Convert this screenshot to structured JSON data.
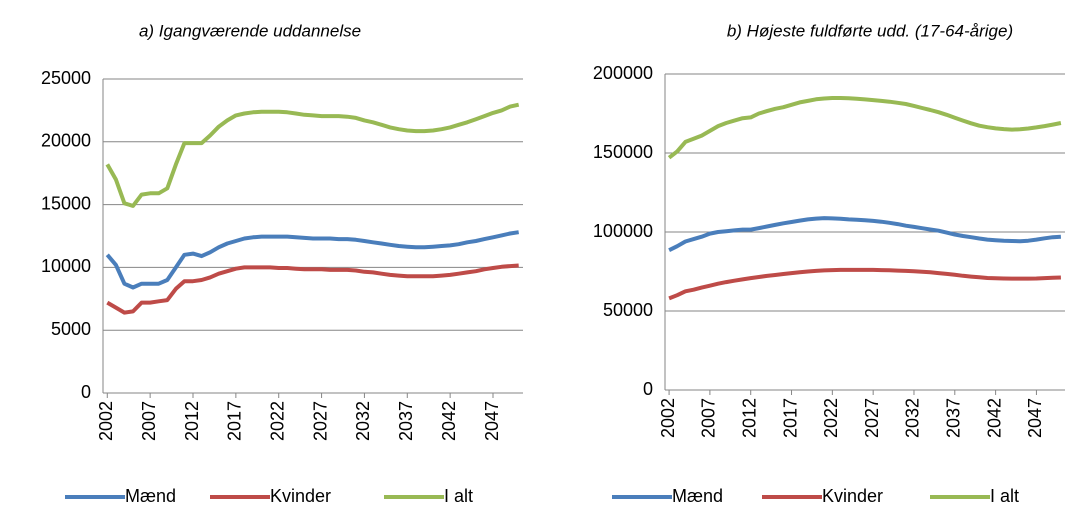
{
  "chart_data": [
    {
      "type": "line",
      "title": "a) Igangværende uddannelse",
      "x": [
        2002,
        2003,
        2004,
        2005,
        2006,
        2007,
        2008,
        2009,
        2010,
        2011,
        2012,
        2013,
        2014,
        2015,
        2016,
        2017,
        2018,
        2019,
        2020,
        2021,
        2022,
        2023,
        2024,
        2025,
        2026,
        2027,
        2028,
        2029,
        2030,
        2031,
        2032,
        2033,
        2034,
        2035,
        2036,
        2037,
        2038,
        2039,
        2040,
        2041,
        2042,
        2043,
        2044,
        2045,
        2046,
        2047,
        2048,
        2049,
        2050
      ],
      "xlim": [
        2002,
        2050
      ],
      "xticks": [
        2002,
        2007,
        2012,
        2017,
        2022,
        2027,
        2032,
        2037,
        2042,
        2047
      ],
      "ylim": [
        0,
        25000
      ],
      "yticks": [
        0,
        5000,
        10000,
        15000,
        20000,
        25000
      ],
      "grid": true,
      "series": [
        {
          "name": "Mænd",
          "color": "#4a7ebb",
          "values": [
            11000,
            10200,
            8700,
            8400,
            8700,
            8700,
            8700,
            9000,
            10000,
            11000,
            11100,
            10900,
            11200,
            11600,
            11900,
            12100,
            12300,
            12400,
            12450,
            12450,
            12450,
            12450,
            12400,
            12350,
            12300,
            12300,
            12300,
            12250,
            12250,
            12200,
            12100,
            12000,
            11900,
            11800,
            11700,
            11650,
            11600,
            11600,
            11650,
            11700,
            11750,
            11850,
            12000,
            12100,
            12250,
            12400,
            12550,
            12700,
            12800
          ]
        },
        {
          "name": "Kvinder",
          "color": "#be4b48",
          "values": [
            7200,
            6800,
            6400,
            6500,
            7200,
            7200,
            7300,
            7400,
            8300,
            8900,
            8900,
            9000,
            9200,
            9500,
            9700,
            9900,
            10000,
            10000,
            10000,
            10000,
            9950,
            9950,
            9900,
            9850,
            9850,
            9850,
            9800,
            9800,
            9800,
            9750,
            9650,
            9600,
            9500,
            9400,
            9350,
            9300,
            9300,
            9300,
            9300,
            9350,
            9400,
            9500,
            9600,
            9700,
            9850,
            9950,
            10050,
            10100,
            10150
          ]
        },
        {
          "name": "I alt",
          "color": "#98b954",
          "values": [
            18200,
            17000,
            15100,
            14900,
            15800,
            15900,
            15900,
            16300,
            18200,
            19900,
            19900,
            19900,
            20500,
            21200,
            21700,
            22100,
            22250,
            22350,
            22400,
            22400,
            22400,
            22350,
            22250,
            22150,
            22100,
            22050,
            22050,
            22050,
            22000,
            21900,
            21700,
            21550,
            21350,
            21150,
            21000,
            20900,
            20850,
            20850,
            20900,
            21000,
            21150,
            21350,
            21550,
            21800,
            22050,
            22300,
            22500,
            22800,
            22950
          ]
        }
      ]
    },
    {
      "type": "line",
      "title": "b) Højeste fuldførte udd. (17-64-årige)",
      "x": [
        2002,
        2003,
        2004,
        2005,
        2006,
        2007,
        2008,
        2009,
        2010,
        2011,
        2012,
        2013,
        2014,
        2015,
        2016,
        2017,
        2018,
        2019,
        2020,
        2021,
        2022,
        2023,
        2024,
        2025,
        2026,
        2027,
        2028,
        2029,
        2030,
        2031,
        2032,
        2033,
        2034,
        2035,
        2036,
        2037,
        2038,
        2039,
        2040,
        2041,
        2042,
        2043,
        2044,
        2045,
        2046,
        2047,
        2048,
        2049,
        2050
      ],
      "xlim": [
        2002,
        2050
      ],
      "xticks": [
        2002,
        2007,
        2012,
        2017,
        2022,
        2027,
        2032,
        2037,
        2042,
        2047
      ],
      "ylim": [
        0,
        200000
      ],
      "yticks": [
        0,
        50000,
        100000,
        150000,
        200000
      ],
      "grid": true,
      "series": [
        {
          "name": "Mænd",
          "color": "#4a7ebb",
          "values": [
            88500,
            91000,
            94000,
            95500,
            97000,
            99000,
            100000,
            100500,
            101000,
            101500,
            101500,
            102500,
            103500,
            104500,
            105500,
            106300,
            107200,
            108000,
            108500,
            108800,
            108600,
            108400,
            108000,
            107800,
            107500,
            107000,
            106500,
            105800,
            105000,
            104000,
            103200,
            102400,
            101600,
            100800,
            99600,
            98400,
            97500,
            96700,
            95900,
            95200,
            94800,
            94500,
            94300,
            94200,
            94500,
            95200,
            96000,
            96700,
            97000
          ]
        },
        {
          "name": "Kvinder",
          "color": "#be4b48",
          "values": [
            58000,
            60000,
            62500,
            63500,
            64800,
            66000,
            67300,
            68300,
            69200,
            70000,
            70800,
            71500,
            72200,
            72800,
            73400,
            74000,
            74500,
            75000,
            75400,
            75700,
            75900,
            76000,
            76000,
            76000,
            76000,
            76000,
            75900,
            75800,
            75600,
            75400,
            75200,
            74900,
            74500,
            74000,
            73500,
            72900,
            72300,
            71800,
            71300,
            70900,
            70700,
            70600,
            70500,
            70500,
            70500,
            70600,
            70800,
            71000,
            71200
          ]
        },
        {
          "name": "I alt",
          "color": "#98b954",
          "values": [
            147000,
            151000,
            157000,
            159000,
            161000,
            164000,
            167000,
            169000,
            170500,
            172000,
            172500,
            175000,
            176500,
            178000,
            179000,
            180500,
            182000,
            183000,
            184000,
            184500,
            184800,
            184800,
            184600,
            184300,
            183900,
            183500,
            183000,
            182500,
            181800,
            181000,
            179800,
            178500,
            177200,
            175800,
            174200,
            172300,
            170500,
            168800,
            167300,
            166300,
            165600,
            165100,
            164800,
            165000,
            165500,
            166200,
            167000,
            168000,
            169000
          ]
        }
      ]
    }
  ]
}
